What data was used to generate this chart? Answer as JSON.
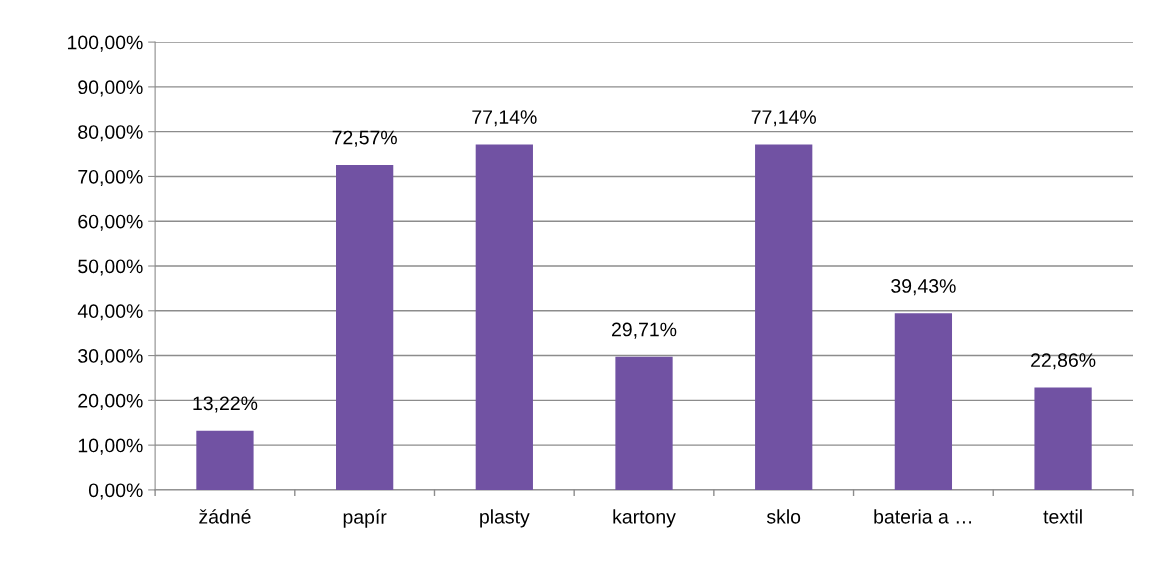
{
  "chart_data": {
    "type": "bar",
    "categories": [
      "žádné",
      "papír",
      "plasty",
      "kartony",
      "sklo",
      "bateria a …",
      "textil"
    ],
    "values": [
      13.22,
      72.57,
      77.14,
      29.71,
      77.14,
      39.43,
      22.86
    ],
    "value_labels": [
      "13,22%",
      "72,57%",
      "77,14%",
      "29,71%",
      "77,14%",
      "39,43%",
      "22,86%"
    ],
    "color": "#7152a3",
    "ylim": [
      0,
      100
    ],
    "yticks": [
      {
        "value": 0,
        "label": "0,00%"
      },
      {
        "value": 10,
        "label": "10,00%"
      },
      {
        "value": 20,
        "label": "20,00%"
      },
      {
        "value": 30,
        "label": "30,00%"
      },
      {
        "value": 40,
        "label": "40,00%"
      },
      {
        "value": 50,
        "label": "50,00%"
      },
      {
        "value": 60,
        "label": "60,00%"
      },
      {
        "value": 70,
        "label": "70,00%"
      },
      {
        "value": 80,
        "label": "80,00%"
      },
      {
        "value": 90,
        "label": "90,00%"
      },
      {
        "value": 100,
        "label": "100,00%"
      }
    ],
    "grid": "y",
    "legend": false
  }
}
